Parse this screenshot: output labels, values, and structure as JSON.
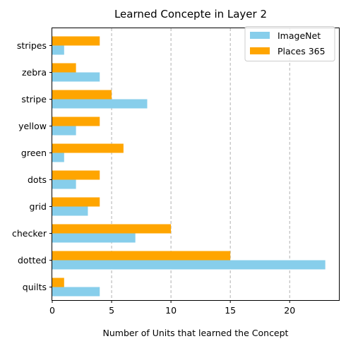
{
  "chart_data": {
    "type": "bar",
    "orientation": "horizontal",
    "title": "Learned Concepte in Layer 2",
    "xlabel": "Number of Units that learned the Concept",
    "ylabel": "",
    "categories": [
      "quilts",
      "dotted",
      "checker",
      "grid",
      "dots",
      "green",
      "yellow",
      "stripe",
      "zebra",
      "stripes"
    ],
    "series": [
      {
        "name": "ImageNet",
        "color": "#87CEEB",
        "values": [
          4,
          23,
          7,
          3,
          2,
          1,
          2,
          8,
          4,
          1
        ]
      },
      {
        "name": "Places 365",
        "color": "#FFA500",
        "values": [
          1,
          15,
          10,
          4,
          4,
          6,
          4,
          5,
          2,
          4
        ]
      }
    ],
    "xlim": [
      0,
      24.15
    ],
    "xticks": [
      0,
      5,
      10,
      15,
      20
    ],
    "grid": "x-axis dashed",
    "legend_position": "top-right"
  }
}
